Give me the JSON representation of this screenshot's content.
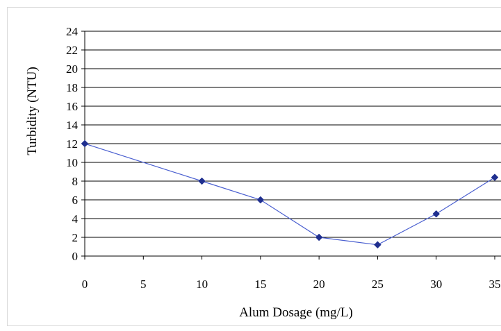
{
  "chart_data": {
    "type": "line",
    "xlabel": "Alum Dosage (mg/L)",
    "ylabel": "Turbidity (NTU)",
    "xlim": [
      0,
      35
    ],
    "ylim": [
      0,
      24
    ],
    "x_ticks": [
      0,
      5,
      10,
      15,
      20,
      25,
      30,
      35
    ],
    "y_ticks": [
      0,
      2,
      4,
      6,
      8,
      10,
      12,
      14,
      16,
      18,
      20,
      22,
      24
    ],
    "grid": "horizontal",
    "legend": "none",
    "series": [
      {
        "color": "#1f2f8f",
        "marker": "diamond",
        "x": [
          0,
          10,
          15,
          20,
          25,
          30,
          35
        ],
        "y": [
          12,
          8,
          6,
          2,
          1.2,
          4.5,
          8.4
        ]
      }
    ]
  }
}
